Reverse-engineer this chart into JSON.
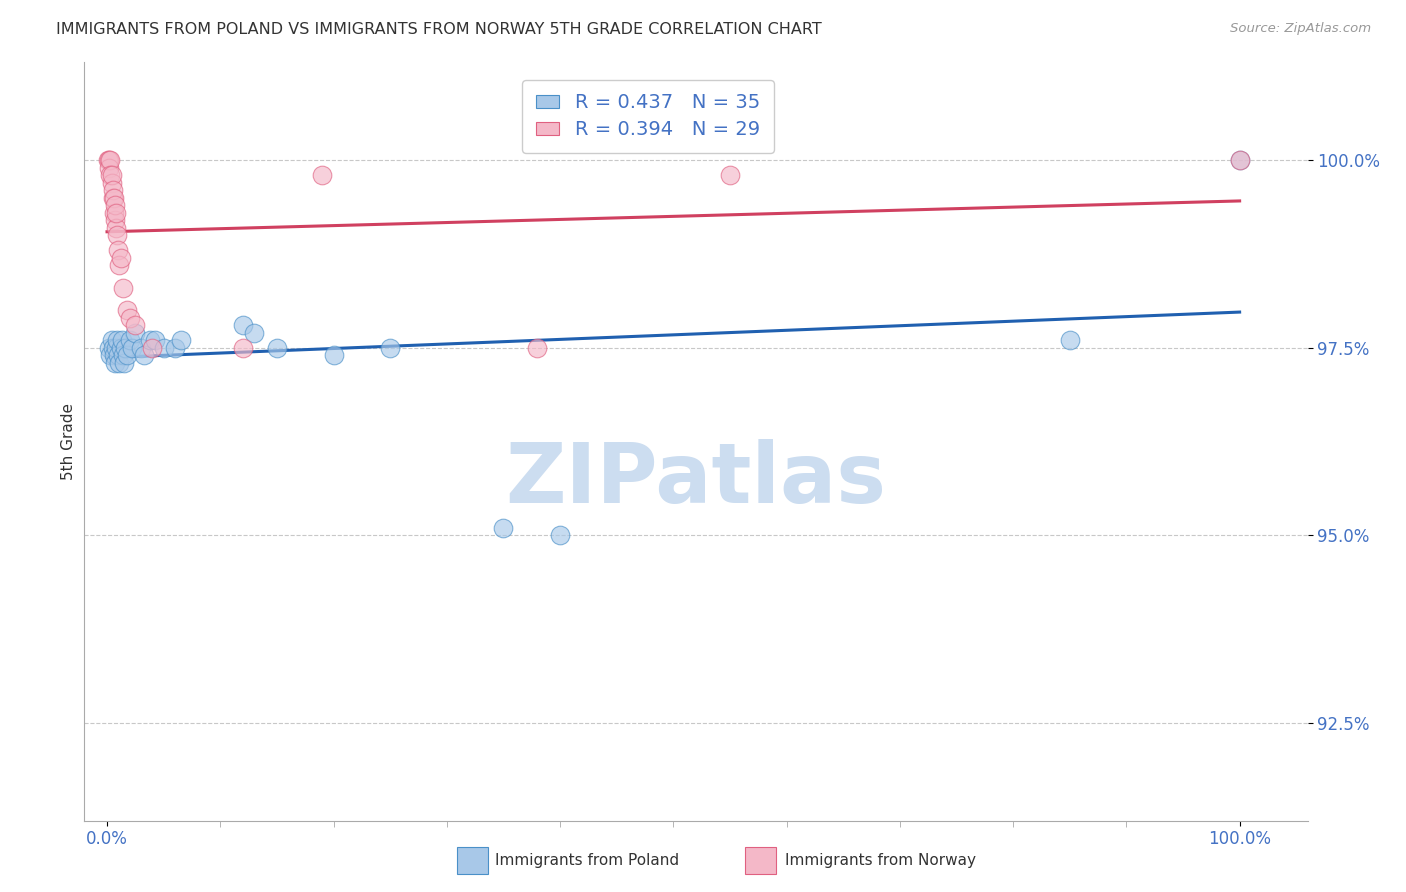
{
  "title": "IMMIGRANTS FROM POLAND VS IMMIGRANTS FROM NORWAY 5TH GRADE CORRELATION CHART",
  "source": "Source: ZipAtlas.com",
  "ylabel": "5th Grade",
  "legend_R_blue": "0.437",
  "legend_N_blue": "35",
  "legend_R_pink": "0.394",
  "legend_N_pink": "29",
  "blue_scatter_color": "#a8c8e8",
  "blue_edge_color": "#4a90c8",
  "pink_scatter_color": "#f4b8c8",
  "pink_edge_color": "#e06080",
  "blue_line_color": "#2060b0",
  "pink_line_color": "#d04060",
  "grid_color": "#c8c8c8",
  "right_tick_color": "#4472c4",
  "watermark_color": "#ccddf0",
  "title_color": "#333333",
  "source_color": "#999999",
  "blue_x": [
    0.002,
    0.003,
    0.004,
    0.005,
    0.006,
    0.007,
    0.008,
    0.009,
    0.01,
    0.011,
    0.012,
    0.013,
    0.014,
    0.015,
    0.016,
    0.018,
    0.02,
    0.022,
    0.025,
    0.03,
    0.033,
    0.038,
    0.042,
    0.05,
    0.06,
    0.065,
    0.12,
    0.13,
    0.15,
    0.2,
    0.25,
    0.35,
    0.4,
    0.85,
    1.0
  ],
  "blue_y": [
    97.5,
    97.4,
    97.6,
    97.5,
    97.4,
    97.3,
    97.5,
    97.6,
    97.4,
    97.3,
    97.5,
    97.6,
    97.4,
    97.3,
    97.5,
    97.4,
    97.6,
    97.5,
    97.7,
    97.5,
    97.4,
    97.6,
    97.6,
    97.5,
    97.5,
    97.6,
    97.8,
    97.7,
    97.5,
    97.4,
    97.5,
    95.1,
    95.0,
    97.6,
    100.0
  ],
  "pink_x": [
    0.001,
    0.002,
    0.002,
    0.003,
    0.003,
    0.004,
    0.004,
    0.005,
    0.005,
    0.006,
    0.006,
    0.007,
    0.007,
    0.008,
    0.008,
    0.009,
    0.01,
    0.011,
    0.012,
    0.014,
    0.018,
    0.02,
    0.025,
    0.04,
    0.12,
    0.19,
    0.38,
    0.55,
    1.0
  ],
  "pink_y": [
    100.0,
    100.0,
    99.9,
    100.0,
    99.8,
    99.7,
    99.8,
    99.5,
    99.6,
    99.3,
    99.5,
    99.2,
    99.4,
    99.1,
    99.3,
    99.0,
    98.8,
    98.6,
    98.7,
    98.3,
    98.0,
    97.9,
    97.8,
    97.5,
    97.5,
    99.8,
    97.5,
    99.8,
    100.0
  ],
  "y_ticks": [
    92.5,
    95.0,
    97.5,
    100.0
  ],
  "x_ticks": [
    0.0,
    1.0
  ],
  "y_min": 91.2,
  "y_max": 101.3,
  "x_min": -0.02,
  "x_max": 1.06
}
